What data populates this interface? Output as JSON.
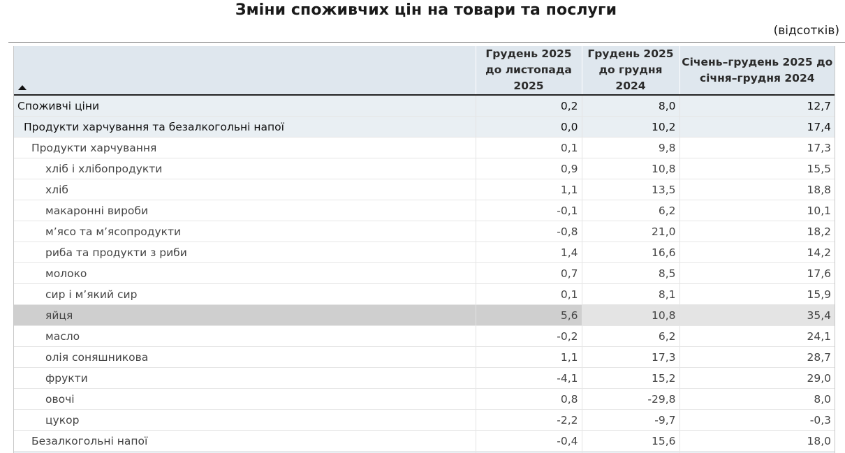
{
  "title": "Зміни споживчих цін на товари та послуги",
  "unit": "(відсотків)",
  "columns": [
    "Грудень 2025 до листопада 2025",
    "Грудень 2025 до грудня 2024",
    "Січень–грудень 2025 до січня–грудня 2024"
  ],
  "rows": [
    {
      "label": "Споживчі ціни",
      "level": 0,
      "values": [
        "0,2",
        "8,0",
        "12,7"
      ]
    },
    {
      "label": "Продукти харчування та безалкогольні напої",
      "level": 1,
      "values": [
        "0,0",
        "10,2",
        "17,4"
      ]
    },
    {
      "label": "Продукти харчування",
      "level": 2,
      "values": [
        "0,1",
        "9,8",
        "17,3"
      ]
    },
    {
      "label": "хліб і хлібопродукти",
      "level": 3,
      "values": [
        "0,9",
        "10,8",
        "15,5"
      ]
    },
    {
      "label": "хліб",
      "level": 3,
      "values": [
        "1,1",
        "13,5",
        "18,8"
      ]
    },
    {
      "label": "макаронні вироби",
      "level": 3,
      "values": [
        "-0,1",
        "6,2",
        "10,1"
      ]
    },
    {
      "label": "м’ясо та м’ясопродукти",
      "level": 3,
      "values": [
        "-0,8",
        "21,0",
        "18,2"
      ]
    },
    {
      "label": "риба та продукти з риби",
      "level": 3,
      "values": [
        "1,4",
        "16,6",
        "14,2"
      ]
    },
    {
      "label": "молоко",
      "level": 3,
      "values": [
        "0,7",
        "8,5",
        "17,6"
      ]
    },
    {
      "label": "сир і м’який сир",
      "level": 3,
      "values": [
        "0,1",
        "8,1",
        "15,9"
      ]
    },
    {
      "label": "яйця",
      "level": 3,
      "values": [
        "5,6",
        "10,8",
        "35,4"
      ],
      "highlighted": true
    },
    {
      "label": "масло",
      "level": 3,
      "values": [
        "-0,2",
        "6,2",
        "24,1"
      ]
    },
    {
      "label": "олія соняшникова",
      "level": 3,
      "values": [
        "1,1",
        "17,3",
        "28,7"
      ]
    },
    {
      "label": "фрукти",
      "level": 3,
      "values": [
        "-4,1",
        "15,2",
        "29,0"
      ]
    },
    {
      "label": "овочі",
      "level": 3,
      "values": [
        "0,8",
        "-29,8",
        "8,0"
      ]
    },
    {
      "label": "цукор",
      "level": 3,
      "values": [
        "-2,2",
        "-9,7",
        "-0,3"
      ]
    },
    {
      "label": "Безалкогольні напої",
      "level": 2,
      "values": [
        "-0,4",
        "15,6",
        "18,0"
      ]
    },
    {
      "label": "",
      "level": 1,
      "values": [
        "",
        "",
        ""
      ]
    }
  ],
  "icons": {
    "sort": "sort-ascending-icon"
  }
}
